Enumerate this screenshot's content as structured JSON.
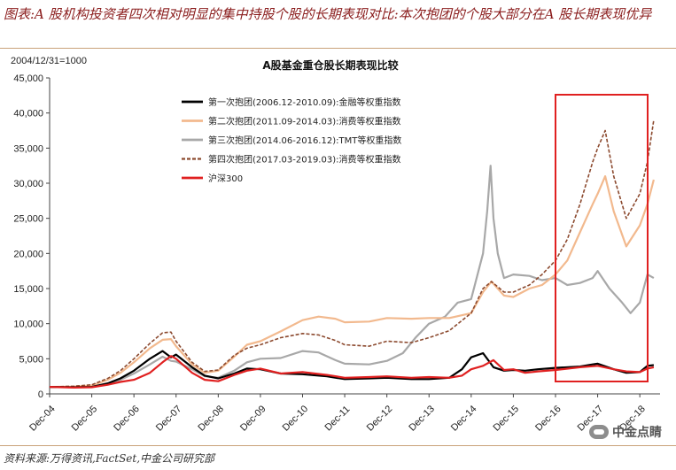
{
  "figure_title": "图表:A 股机构投资者四次相对明显的集中持股个股的长期表现对比:本次抱团的个股大部分在A 股长期表现优异",
  "source_note": "资料来源:万得资讯,FactSet,中金公司研究部",
  "watermark": "中金点睛",
  "chart_data": {
    "type": "line",
    "title": "A股基金重仓股长期表现比较",
    "ylabel": "2004/12/31=1000",
    "xlabel": "",
    "ylim": [
      0,
      45000
    ],
    "yticks": [
      0,
      5000,
      10000,
      15000,
      20000,
      25000,
      30000,
      35000,
      40000,
      45000
    ],
    "ytick_labels": [
      "0",
      "5,000",
      "10,000",
      "15,000",
      "20,000",
      "25,000",
      "30,000",
      "35,000",
      "40,000",
      "45,000"
    ],
    "xlim": [
      2004.92,
      2019.4
    ],
    "xticks": [
      2004.92,
      2005.92,
      2006.92,
      2007.92,
      2008.92,
      2009.92,
      2010.92,
      2011.92,
      2012.92,
      2013.92,
      2014.92,
      2015.92,
      2016.92,
      2017.92,
      2018.92
    ],
    "xtick_labels": [
      "Dec-04",
      "Dec-05",
      "Dec-06",
      "Dec-07",
      "Dec-08",
      "Dec-09",
      "Dec-10",
      "Dec-11",
      "Dec-12",
      "Dec-13",
      "Dec-14",
      "Dec-15",
      "Dec-16",
      "Dec-17",
      "Dec-18"
    ],
    "grid": false,
    "legend_position": "top-center",
    "highlight_box": {
      "x_start": 2016.92,
      "x_end": 2019.4,
      "color": "#e02020"
    },
    "series": [
      {
        "name": "第一次抱团(2006.12-2010.09):金融等权重指数",
        "color": "#000000",
        "style": "solid",
        "width": 2.2,
        "x": [
          2004.92,
          2005.5,
          2005.92,
          2006.3,
          2006.6,
          2006.92,
          2007.3,
          2007.6,
          2007.8,
          2007.92,
          2008.3,
          2008.6,
          2008.92,
          2009.3,
          2009.6,
          2009.92,
          2010.4,
          2010.92,
          2011.5,
          2011.92,
          2012.5,
          2012.92,
          2013.5,
          2013.92,
          2014.4,
          2014.7,
          2014.92,
          2015.2,
          2015.45,
          2015.7,
          2015.92,
          2016.2,
          2016.5,
          2016.92,
          2017.5,
          2017.8,
          2017.92,
          2018.3,
          2018.6,
          2018.92,
          2019.1,
          2019.25
        ],
        "y": [
          1000,
          950,
          1000,
          1500,
          2200,
          3300,
          5000,
          6100,
          5200,
          5600,
          3800,
          2600,
          2200,
          2900,
          3600,
          3500,
          2900,
          2800,
          2500,
          2100,
          2200,
          2300,
          2100,
          2100,
          2300,
          3500,
          5200,
          5800,
          3800,
          3300,
          3400,
          3300,
          3500,
          3700,
          3900,
          4200,
          4300,
          3500,
          3000,
          3100,
          4000,
          4100
        ]
      },
      {
        "name": "第二次抱团(2011.09-2014.03):消费等权重指数",
        "color": "#f2b98e",
        "style": "solid",
        "width": 2.2,
        "x": [
          2004.92,
          2005.5,
          2005.92,
          2006.3,
          2006.6,
          2006.92,
          2007.3,
          2007.6,
          2007.8,
          2007.92,
          2008.3,
          2008.6,
          2008.92,
          2009.3,
          2009.6,
          2009.92,
          2010.4,
          2010.92,
          2011.3,
          2011.7,
          2011.92,
          2012.5,
          2012.92,
          2013.5,
          2013.92,
          2014.4,
          2014.92,
          2015.2,
          2015.4,
          2015.7,
          2015.92,
          2016.3,
          2016.6,
          2016.92,
          2017.2,
          2017.5,
          2017.8,
          2017.92,
          2018.1,
          2018.3,
          2018.6,
          2018.92,
          2019.1,
          2019.25
        ],
        "y": [
          1000,
          1050,
          1200,
          2000,
          3000,
          4500,
          6500,
          7700,
          7800,
          6800,
          4200,
          3000,
          3300,
          5300,
          7000,
          7500,
          8900,
          10500,
          11000,
          10700,
          10200,
          10300,
          10800,
          10700,
          10800,
          10800,
          11500,
          14500,
          16000,
          14000,
          13800,
          15000,
          15500,
          17000,
          19000,
          23000,
          27000,
          28500,
          31000,
          26000,
          21000,
          24000,
          27000,
          30500
        ]
      },
      {
        "name": "第三次抱团(2014.06-2016.12):TMT等权重指数",
        "color": "#a8a8a8",
        "style": "solid",
        "width": 2.2,
        "x": [
          2004.92,
          2005.5,
          2005.92,
          2006.3,
          2006.6,
          2006.92,
          2007.3,
          2007.6,
          2007.8,
          2007.92,
          2008.3,
          2008.6,
          2008.92,
          2009.3,
          2009.6,
          2009.92,
          2010.4,
          2010.92,
          2011.3,
          2011.7,
          2011.92,
          2012.5,
          2012.92,
          2013.3,
          2013.6,
          2013.92,
          2014.3,
          2014.6,
          2014.92,
          2015.2,
          2015.3,
          2015.38,
          2015.45,
          2015.55,
          2015.7,
          2015.92,
          2016.3,
          2016.6,
          2016.92,
          2017.2,
          2017.5,
          2017.8,
          2017.92,
          2018.2,
          2018.5,
          2018.7,
          2018.92,
          2019.1,
          2019.25
        ],
        "y": [
          1000,
          950,
          1000,
          1400,
          2000,
          2900,
          4200,
          5300,
          4700,
          4600,
          3500,
          2500,
          2300,
          3300,
          4500,
          5000,
          5100,
          6100,
          5900,
          4800,
          4300,
          4200,
          4700,
          5800,
          8000,
          10000,
          11000,
          13000,
          13500,
          20000,
          26000,
          32500,
          25000,
          20000,
          16500,
          17000,
          16800,
          16200,
          16500,
          15500,
          15800,
          16500,
          17500,
          15000,
          13000,
          11500,
          13000,
          17000,
          16500
        ]
      },
      {
        "name": "第四次抱团(2017.03-2019.03):消费等权重指数",
        "color": "#8c4a2f",
        "style": "dashed",
        "width": 1.6,
        "x": [
          2004.92,
          2005.5,
          2005.92,
          2006.3,
          2006.6,
          2006.92,
          2007.3,
          2007.6,
          2007.8,
          2007.92,
          2008.3,
          2008.6,
          2008.92,
          2009.3,
          2009.6,
          2009.92,
          2010.4,
          2010.92,
          2011.3,
          2011.7,
          2011.92,
          2012.5,
          2012.92,
          2013.5,
          2013.92,
          2014.4,
          2014.92,
          2015.2,
          2015.4,
          2015.7,
          2015.92,
          2016.3,
          2016.6,
          2016.92,
          2017.2,
          2017.5,
          2017.8,
          2017.92,
          2018.1,
          2018.3,
          2018.6,
          2018.92,
          2019.1,
          2019.25
        ],
        "y": [
          1000,
          1100,
          1300,
          2200,
          3300,
          5000,
          7200,
          8700,
          8800,
          7500,
          4500,
          3200,
          3400,
          5500,
          6500,
          7000,
          8000,
          8600,
          8400,
          7600,
          7000,
          6800,
          7500,
          7300,
          8000,
          9000,
          11500,
          15000,
          16000,
          14500,
          14500,
          15500,
          17000,
          19000,
          22000,
          27000,
          33000,
          35000,
          37500,
          31000,
          25000,
          28500,
          33000,
          39000
        ]
      },
      {
        "name": "沪深300",
        "color": "#e02020",
        "style": "solid",
        "width": 2.2,
        "x": [
          2004.92,
          2005.5,
          2005.92,
          2006.3,
          2006.6,
          2006.92,
          2007.3,
          2007.6,
          2007.8,
          2007.92,
          2008.3,
          2008.6,
          2008.92,
          2009.3,
          2009.6,
          2009.92,
          2010.4,
          2010.92,
          2011.5,
          2011.92,
          2012.5,
          2012.92,
          2013.5,
          2013.92,
          2014.4,
          2014.7,
          2014.92,
          2015.2,
          2015.45,
          2015.7,
          2015.92,
          2016.2,
          2016.5,
          2016.92,
          2017.5,
          2017.92,
          2018.3,
          2018.6,
          2018.92,
          2019.1,
          2019.25
        ],
        "y": [
          1000,
          900,
          950,
          1300,
          1700,
          2000,
          3000,
          4500,
          5400,
          5000,
          3000,
          2000,
          1800,
          2700,
          3300,
          3600,
          2900,
          3100,
          2700,
          2300,
          2400,
          2500,
          2300,
          2400,
          2300,
          2600,
          3500,
          4000,
          4800,
          3400,
          3500,
          3000,
          3200,
          3400,
          3800,
          4000,
          3500,
          3200,
          3100,
          3600,
          3800
        ]
      }
    ]
  }
}
